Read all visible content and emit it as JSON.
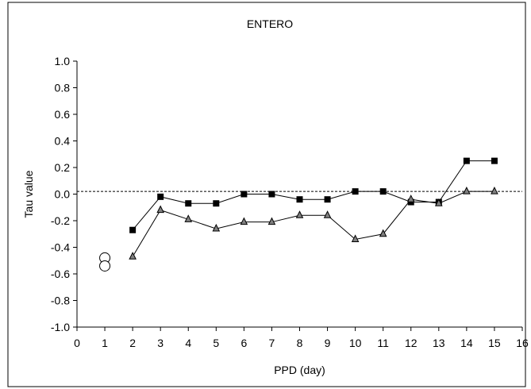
{
  "chart_data": {
    "type": "line",
    "title": "ENTERO",
    "xlabel": "PPD (day)",
    "ylabel": "Tau value",
    "xlim": [
      0,
      16
    ],
    "ylim": [
      -1.0,
      1.0
    ],
    "x_ticks": [
      0,
      1,
      2,
      3,
      4,
      5,
      6,
      7,
      8,
      9,
      10,
      11,
      12,
      13,
      14,
      15,
      16
    ],
    "y_ticks": [
      -1.0,
      -0.8,
      -0.6,
      -0.4,
      -0.2,
      0.0,
      0.2,
      0.4,
      0.6,
      0.8,
      1.0
    ],
    "y_tick_labels": [
      "-1.0",
      "-0.8",
      "-0.6",
      "-0.4",
      "-0.2",
      "0.0",
      "0.2",
      "0.4",
      "0.6",
      "0.8",
      "1.0"
    ],
    "reference_line": {
      "y": 0.02,
      "style": "dashed"
    },
    "grid": false,
    "series": [
      {
        "marker": "square",
        "color": "#000000",
        "x": [
          2,
          3,
          4,
          5,
          6,
          7,
          8,
          9,
          10,
          11,
          12,
          13,
          14,
          15
        ],
        "y": [
          -0.27,
          -0.02,
          -0.07,
          -0.07,
          0.0,
          0.0,
          -0.04,
          -0.04,
          0.02,
          0.02,
          -0.06,
          -0.06,
          0.25,
          0.25
        ],
        "special_points": [
          {
            "x": 1,
            "y": -0.48,
            "marker": "open-circle"
          }
        ]
      },
      {
        "marker": "triangle",
        "color": "#808080",
        "x": [
          2,
          3,
          4,
          5,
          6,
          7,
          8,
          9,
          10,
          11,
          12,
          13,
          14,
          15
        ],
        "y": [
          -0.47,
          -0.12,
          -0.19,
          -0.26,
          -0.21,
          -0.21,
          -0.16,
          -0.16,
          -0.34,
          -0.3,
          -0.04,
          -0.07,
          0.02,
          0.02
        ],
        "special_points": [
          {
            "x": 1,
            "y": -0.54,
            "marker": "open-circle"
          }
        ]
      }
    ]
  }
}
